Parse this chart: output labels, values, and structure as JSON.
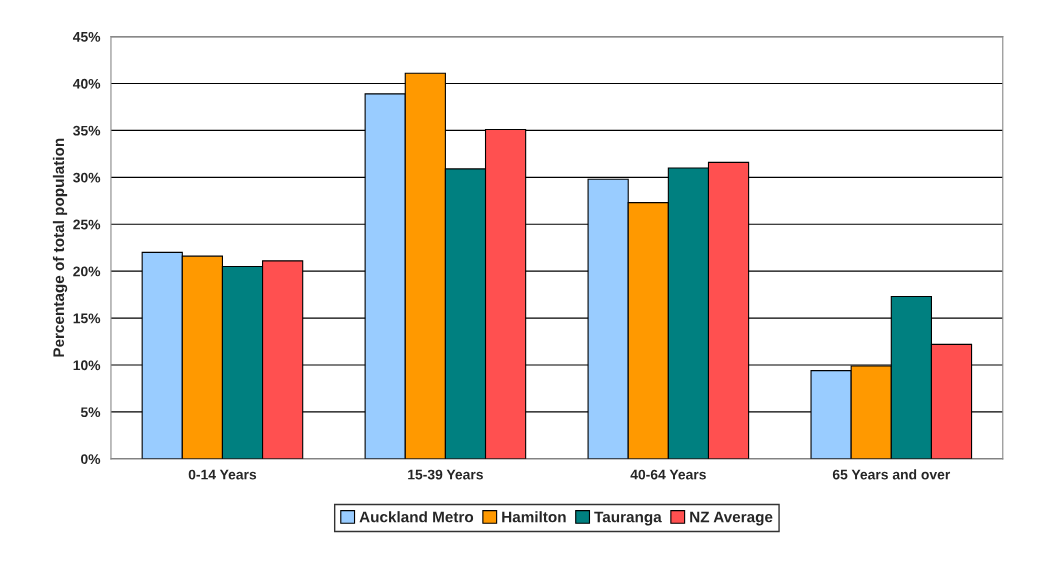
{
  "chart_data": {
    "type": "bar",
    "ylabel": "Percentage of total population",
    "categories": [
      "0-14 Years",
      "15-39 Years",
      "40-64 Years",
      "65 Years and over"
    ],
    "series": [
      {
        "name": "Auckland Metro",
        "color": "#99ccff",
        "values": [
          22.0,
          38.9,
          29.8,
          9.4
        ]
      },
      {
        "name": "Hamilton",
        "color": "#ff9900",
        "values": [
          21.6,
          41.1,
          27.3,
          9.9
        ]
      },
      {
        "name": "Tauranga",
        "color": "#008080",
        "values": [
          20.5,
          30.9,
          31.0,
          17.3
        ]
      },
      {
        "name": "NZ Average",
        "color": "#ff5050",
        "values": [
          21.1,
          35.1,
          31.6,
          12.2
        ]
      }
    ],
    "ylim": [
      0,
      45
    ],
    "yticks": [
      {
        "value": 0,
        "label": "0%"
      },
      {
        "value": 5,
        "label": "5%"
      },
      {
        "value": 10,
        "label": "10%"
      },
      {
        "value": 15,
        "label": "15%"
      },
      {
        "value": 20,
        "label": "20%"
      },
      {
        "value": 25,
        "label": "25%"
      },
      {
        "value": 30,
        "label": "30%"
      },
      {
        "value": 35,
        "label": "35%"
      },
      {
        "value": 40,
        "label": "40%"
      },
      {
        "value": 45,
        "label": "45%"
      }
    ],
    "grid": "y",
    "legend": "bottom"
  }
}
